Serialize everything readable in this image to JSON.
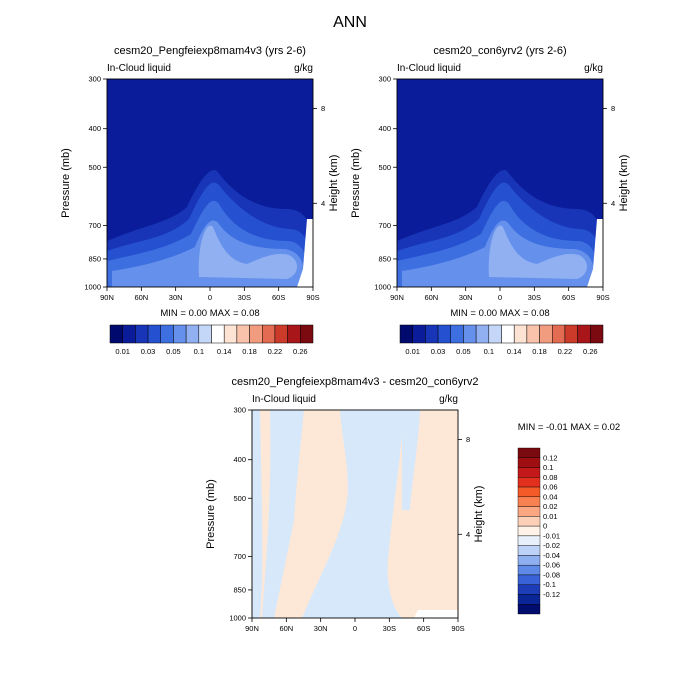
{
  "page": {
    "title": "ANN"
  },
  "colors": {
    "dark_blue": "#0a1c9a",
    "fill_levels": [
      "#000a6e",
      "#0a1c9a",
      "#1835b8",
      "#2551d0",
      "#3e6fe0",
      "#6590ec",
      "#90b0f2",
      "#c4d7f8",
      "#ffffff",
      "#fde3d4",
      "#f9c2aa",
      "#f19b7f",
      "#e36b52",
      "#cc3b2a",
      "#a8161a",
      "#7a0a10"
    ],
    "diff_blue": "#d6e8fa",
    "diff_peach": "#fde8d8",
    "diff_bar": [
      "#7a0a10",
      "#9f0f12",
      "#c4191a",
      "#e3301e",
      "#f45a28",
      "#f98050",
      "#fba882",
      "#fcd0b6",
      "#fff2e8",
      "#e7f0fb",
      "#bcd2f6",
      "#8eb0f0",
      "#5f89e6",
      "#3962d8",
      "#1d3db8",
      "#0a2596",
      "#000d6e"
    ]
  },
  "chart_data": [
    {
      "type": "heatmap",
      "title": "cesm20_Pengfeiexp8mam4v3 (yrs 2-6)",
      "left_label": "In-Cloud liquid",
      "right_label": "g/kg",
      "ylabel": "Pressure (mb)",
      "ylabel_right": "Height (km)",
      "x_ticks": [
        "90N",
        "60N",
        "30N",
        "0",
        "30S",
        "60S",
        "90S"
      ],
      "y_ticks": [
        "300",
        "400",
        "500",
        "700",
        "850",
        "1000"
      ],
      "y_ticks_right": [
        "8",
        "4"
      ],
      "stats": "MIN =   0.00   MAX =   0.08",
      "colorbar_labels": [
        "0.01",
        "0.03",
        "0.05",
        "0.1",
        "0.14",
        "0.18",
        "0.22",
        "0.26"
      ]
    },
    {
      "type": "heatmap",
      "title": "cesm20_con6yrv2 (yrs 2-6)",
      "left_label": "In-Cloud liquid",
      "right_label": "g/kg",
      "ylabel": "Pressure (mb)",
      "ylabel_right": "Height (km)",
      "x_ticks": [
        "90N",
        "60N",
        "30N",
        "0",
        "30S",
        "60S",
        "90S"
      ],
      "y_ticks": [
        "300",
        "400",
        "500",
        "700",
        "850",
        "1000"
      ],
      "y_ticks_right": [
        "8",
        "4"
      ],
      "stats": "MIN =   0.00   MAX =   0.08",
      "colorbar_labels": [
        "0.01",
        "0.03",
        "0.05",
        "0.1",
        "0.14",
        "0.18",
        "0.22",
        "0.26"
      ]
    },
    {
      "type": "heatmap",
      "title": "cesm20_Pengfeiexp8mam4v3 - cesm20_con6yrv2",
      "left_label": "In-Cloud liquid",
      "right_label": "g/kg",
      "ylabel": "Pressure (mb)",
      "ylabel_right": "Height (km)",
      "x_ticks": [
        "90N",
        "60N",
        "30N",
        "0",
        "30S",
        "60S",
        "90S"
      ],
      "y_ticks": [
        "300",
        "400",
        "500",
        "700",
        "850",
        "1000"
      ],
      "y_ticks_right": [
        "8",
        "4"
      ],
      "stats": "MIN =  -0.01   MAX =    0.02",
      "colorbar_labels": [
        "0.12",
        "0.1",
        "0.08",
        "0.06",
        "0.04",
        "0.02",
        "0.01",
        "0",
        "-0.01",
        "-0.02",
        "-0.04",
        "-0.06",
        "-0.08",
        "-0.1",
        "-0.12"
      ]
    }
  ]
}
